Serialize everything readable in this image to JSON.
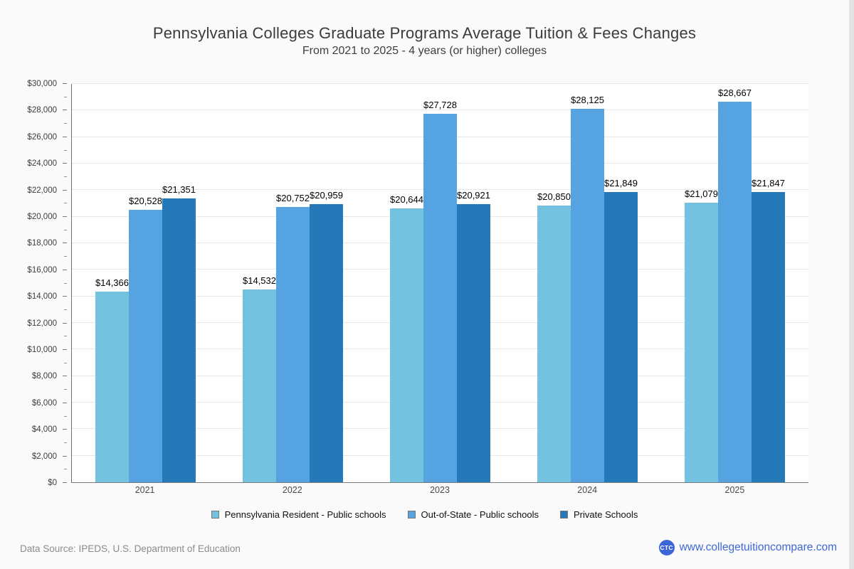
{
  "page": {
    "title": "Pennsylvania Colleges Graduate Programs Average Tuition & Fees Changes",
    "subtitle": "From 2021 to 2025 - 4 years (or higher) colleges"
  },
  "chart_data": {
    "type": "bar",
    "title": "Pennsylvania Colleges Graduate Programs Average Tuition & Fees Changes",
    "subtitle": "From 2021 to 2025 - 4 years (or higher) colleges",
    "categories": [
      "2021",
      "2022",
      "2023",
      "2024",
      "2025"
    ],
    "series": [
      {
        "name": "Pennsylvania Resident - Public schools",
        "color": "#72c2e0",
        "values": [
          14366,
          14532,
          20644,
          20850,
          21079
        ],
        "value_labels": [
          "$14,366",
          "$14,532",
          "$20,644",
          "$20,850",
          "$21,079"
        ]
      },
      {
        "name": "Out-of-State - Public schools",
        "color": "#55a3e1",
        "values": [
          20528,
          20752,
          27728,
          28125,
          28667
        ],
        "value_labels": [
          "$20,528",
          "$20,752",
          "$27,728",
          "$28,125",
          "$28,667"
        ]
      },
      {
        "name": "Private Schools",
        "color": "#2679b8",
        "values": [
          21351,
          20959,
          20921,
          21849,
          21847
        ],
        "value_labels": [
          "$21,351",
          "$20,959",
          "$20,921",
          "$21,849",
          "$21,847"
        ]
      }
    ],
    "ylim": [
      0,
      30000
    ],
    "y_tick_step": 2000,
    "y_minor_tick_step": 1000,
    "y_tick_labels": [
      "$0",
      "$2,000",
      "$4,000",
      "$6,000",
      "$8,000",
      "$10,000",
      "$12,000",
      "$14,000",
      "$16,000",
      "$18,000",
      "$20,000",
      "$22,000",
      "$24,000",
      "$26,000",
      "$28,000",
      "$30,000"
    ],
    "grid": true,
    "legend_position": "bottom"
  },
  "footer": {
    "source": "Data Source: IPEDS, U.S. Department of Education",
    "logo_text": "CTC",
    "website": "www.collegetuitioncompare.com"
  }
}
